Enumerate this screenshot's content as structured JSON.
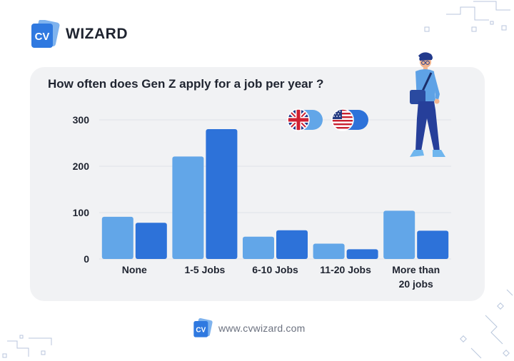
{
  "brand": {
    "logo_text": "CV",
    "name": "WIZARD"
  },
  "footer": {
    "logo_text": "CV",
    "url": "www.cvwizard.com"
  },
  "colors": {
    "uk_bar": "#62a6e8",
    "us_bar": "#2d72d9",
    "accent": "#2f79e0",
    "card_bg": "#f1f2f4"
  },
  "legend": [
    {
      "icon": "uk-flag-icon",
      "series": "uk"
    },
    {
      "icon": "us-flag-icon",
      "series": "us"
    }
  ],
  "chart_data": {
    "type": "bar",
    "title": "How often does Gen Z apply for a job per year ?",
    "categories": [
      "None",
      "1-5 Jobs",
      "6-10 Jobs",
      "11-20 Jobs",
      "More than 20 jobs"
    ],
    "category_lines": [
      [
        "None"
      ],
      [
        "1-5 Jobs"
      ],
      [
        "6-10 Jobs"
      ],
      [
        "11-20 Jobs"
      ],
      [
        "More than",
        "20 jobs"
      ]
    ],
    "series": [
      {
        "key": "uk",
        "values": [
          91,
          221,
          48,
          33,
          104
        ]
      },
      {
        "key": "us",
        "values": [
          78,
          280,
          62,
          21,
          61
        ]
      }
    ],
    "yticks": [
      0,
      100,
      200,
      300
    ],
    "ylim": [
      0,
      300
    ],
    "xlabel": "",
    "ylabel": "",
    "grid": true,
    "legend_position": "top-right"
  }
}
